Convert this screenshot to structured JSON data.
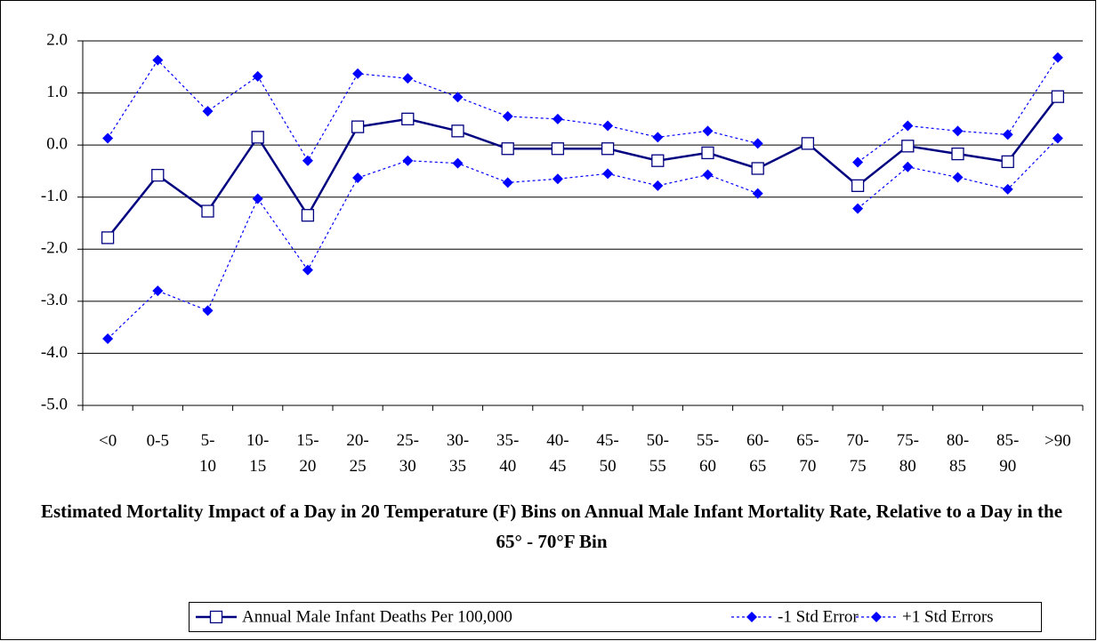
{
  "chart_data": {
    "type": "line",
    "title": "Estimated Mortality Impact of a Day in 20 Temperature (F) Bins on Annual Male Infant Mortality Rate, Relative to a Day in the 65° - 70°F Bin",
    "categories": [
      "<0",
      "0-5",
      "5-10",
      "10-15",
      "15-20",
      "20-25",
      "25-30",
      "30-35",
      "35-40",
      "40-45",
      "45-50",
      "50-55",
      "55-60",
      "60-65",
      "65-70",
      "70-75",
      "75-80",
      "80-85",
      "85-90",
      ">90"
    ],
    "series": [
      {
        "name": "Annual Male Infant Deaths Per 100,000",
        "color": "#000080",
        "style": "solid",
        "marker": "square",
        "values": [
          -1.78,
          -0.58,
          -1.27,
          0.15,
          -1.35,
          0.35,
          0.5,
          0.27,
          -0.07,
          -0.07,
          -0.07,
          -0.3,
          -0.15,
          -0.45,
          0.03,
          -0.78,
          -0.02,
          -0.17,
          -0.32,
          0.93
        ]
      },
      {
        "name": "-1 Std Error",
        "color": "#0000ff",
        "style": "dotted",
        "marker": "diamond",
        "values": [
          -3.72,
          -2.8,
          -3.18,
          -1.03,
          -2.4,
          -0.63,
          -0.3,
          -0.35,
          -0.72,
          -0.65,
          -0.55,
          -0.78,
          -0.57,
          -0.93,
          null,
          -1.22,
          -0.42,
          -0.62,
          -0.85,
          0.13
        ]
      },
      {
        "name": "+1 Std Errors",
        "color": "#0000ff",
        "style": "dotted",
        "marker": "diamond",
        "values": [
          0.13,
          1.63,
          0.65,
          1.32,
          -0.3,
          1.37,
          1.28,
          0.92,
          0.55,
          0.5,
          0.37,
          0.15,
          0.27,
          0.03,
          null,
          -0.33,
          0.37,
          0.27,
          0.2,
          1.68
        ]
      }
    ],
    "ylim": [
      -5,
      2
    ],
    "yticks": [
      {
        "value": -5,
        "label": "-5.0"
      },
      {
        "value": -4,
        "label": "-4.0"
      },
      {
        "value": -3,
        "label": "-3.0"
      },
      {
        "value": -2,
        "label": "-2.0"
      },
      {
        "value": -1,
        "label": "-1.0"
      },
      {
        "value": 0,
        "label": "0.0"
      },
      {
        "value": 1,
        "label": "1.0"
      },
      {
        "value": 2,
        "label": "2.0"
      }
    ],
    "grid": true,
    "legend": "bottom"
  }
}
